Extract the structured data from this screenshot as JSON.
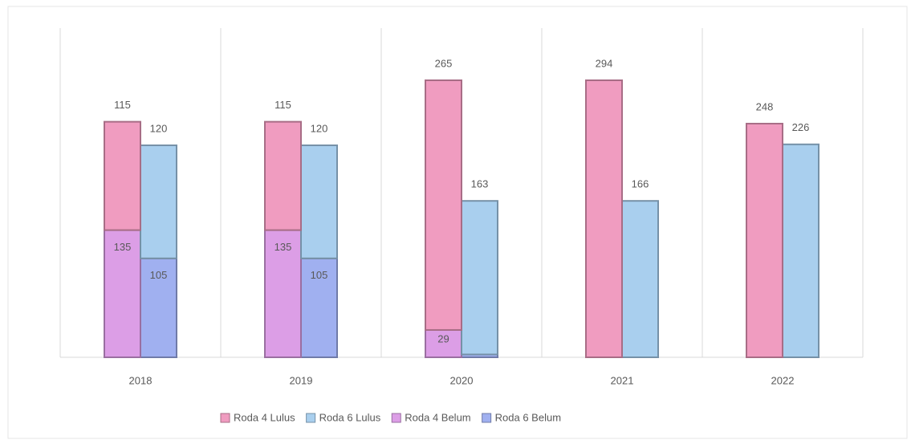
{
  "chart_data": {
    "type": "bar",
    "stacked": true,
    "categories": [
      "2018",
      "2019",
      "2020",
      "2021",
      "2022"
    ],
    "series": [
      {
        "name": "Roda 4 Lulus",
        "stack": "Roda 4",
        "color": "#f09cc0",
        "values": [
          115,
          115,
          265,
          294,
          248
        ]
      },
      {
        "name": "Roda 6 Lulus",
        "stack": "Roda 6",
        "color": "#a9cfee",
        "values": [
          120,
          120,
          163,
          166,
          226
        ]
      },
      {
        "name": "Roda 4 Belum",
        "stack": "Roda 4",
        "color": "#dc9ee6",
        "values": [
          135,
          135,
          29,
          0,
          0
        ]
      },
      {
        "name": "Roda 6 Belum",
        "stack": "Roda 6",
        "color": "#a0b0f0",
        "values": [
          105,
          105,
          3,
          0,
          0
        ]
      }
    ],
    "legend": "bottom"
  }
}
